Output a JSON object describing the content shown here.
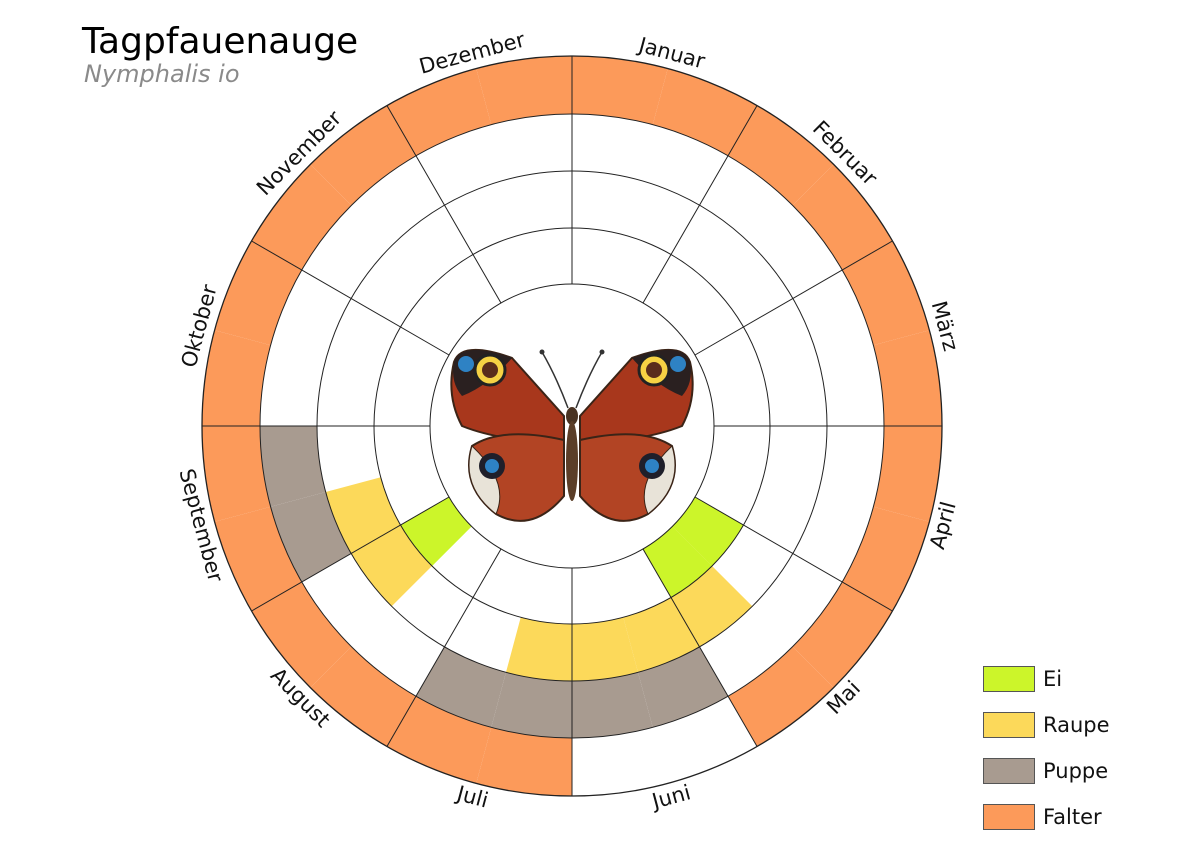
{
  "title": "Tagpfauenauge",
  "subtitle": "Nymphalis io",
  "colors": {
    "Ei": "#ccf52a",
    "Raupe": "#fcd95a",
    "Puppe": "#a89b90",
    "Falter": "#fc9a5a",
    "stroke": "#222222"
  },
  "months": [
    "Januar",
    "Februar",
    "März",
    "April",
    "Mai",
    "Juni",
    "Juli",
    "August",
    "September",
    "Oktober",
    "November",
    "Dezember"
  ],
  "legend": [
    {
      "key": "Ei",
      "label": "Ei"
    },
    {
      "key": "Raupe",
      "label": "Raupe"
    },
    {
      "key": "Puppe",
      "label": "Puppe"
    },
    {
      "key": "Falter",
      "label": "Falter"
    }
  ],
  "center_image": "butterfly-illustration",
  "phenology": [
    {
      "ring": 4,
      "month": 1,
      "half": 0,
      "stage": "Falter"
    },
    {
      "ring": 4,
      "month": 1,
      "half": 1,
      "stage": "Falter"
    },
    {
      "ring": 4,
      "month": 2,
      "half": 0,
      "stage": "Falter"
    },
    {
      "ring": 4,
      "month": 2,
      "half": 1,
      "stage": "Falter"
    },
    {
      "ring": 4,
      "month": 3,
      "half": 0,
      "stage": "Falter"
    },
    {
      "ring": 4,
      "month": 3,
      "half": 1,
      "stage": "Falter"
    },
    {
      "ring": 4,
      "month": 4,
      "half": 0,
      "stage": "Falter"
    },
    {
      "ring": 4,
      "month": 4,
      "half": 1,
      "stage": "Falter"
    },
    {
      "ring": 4,
      "month": 5,
      "half": 0,
      "stage": "Falter"
    },
    {
      "ring": 4,
      "month": 5,
      "half": 1,
      "stage": "Falter"
    },
    {
      "ring": 4,
      "month": 7,
      "half": 0,
      "stage": "Falter"
    },
    {
      "ring": 4,
      "month": 7,
      "half": 1,
      "stage": "Falter"
    },
    {
      "ring": 4,
      "month": 8,
      "half": 0,
      "stage": "Falter"
    },
    {
      "ring": 4,
      "month": 8,
      "half": 1,
      "stage": "Falter"
    },
    {
      "ring": 4,
      "month": 9,
      "half": 0,
      "stage": "Falter"
    },
    {
      "ring": 4,
      "month": 9,
      "half": 1,
      "stage": "Falter"
    },
    {
      "ring": 4,
      "month": 10,
      "half": 0,
      "stage": "Falter"
    },
    {
      "ring": 4,
      "month": 10,
      "half": 1,
      "stage": "Falter"
    },
    {
      "ring": 4,
      "month": 11,
      "half": 0,
      "stage": "Falter"
    },
    {
      "ring": 4,
      "month": 11,
      "half": 1,
      "stage": "Falter"
    },
    {
      "ring": 4,
      "month": 12,
      "half": 0,
      "stage": "Falter"
    },
    {
      "ring": 4,
      "month": 12,
      "half": 1,
      "stage": "Falter"
    },
    {
      "ring": 3,
      "month": 6,
      "half": 0,
      "stage": "Puppe"
    },
    {
      "ring": 3,
      "month": 6,
      "half": 1,
      "stage": "Puppe"
    },
    {
      "ring": 3,
      "month": 7,
      "half": 0,
      "stage": "Puppe"
    },
    {
      "ring": 3,
      "month": 7,
      "half": 1,
      "stage": "Puppe"
    },
    {
      "ring": 3,
      "month": 9,
      "half": 0,
      "stage": "Puppe"
    },
    {
      "ring": 3,
      "month": 9,
      "half": 1,
      "stage": "Puppe"
    },
    {
      "ring": 2,
      "month": 5,
      "half": 1,
      "stage": "Raupe"
    },
    {
      "ring": 2,
      "month": 6,
      "half": 0,
      "stage": "Raupe"
    },
    {
      "ring": 2,
      "month": 6,
      "half": 1,
      "stage": "Raupe"
    },
    {
      "ring": 2,
      "month": 7,
      "half": 0,
      "stage": "Raupe"
    },
    {
      "ring": 2,
      "month": 8,
      "half": 1,
      "stage": "Raupe"
    },
    {
      "ring": 2,
      "month": 9,
      "half": 0,
      "stage": "Raupe"
    },
    {
      "ring": 1,
      "month": 5,
      "half": 0,
      "stage": "Raupe"
    },
    {
      "ring": 1,
      "month": 8,
      "half": 1,
      "stage": "Ei"
    },
    {
      "ring": 0,
      "month": 5,
      "half": 0,
      "stage": "Ei"
    },
    {
      "ring": 0,
      "month": 5,
      "half": 1,
      "stage": "Ei"
    },
    {
      "ring": 0,
      "month": 8,
      "half": 1,
      "stage": "Ei"
    }
  ]
}
